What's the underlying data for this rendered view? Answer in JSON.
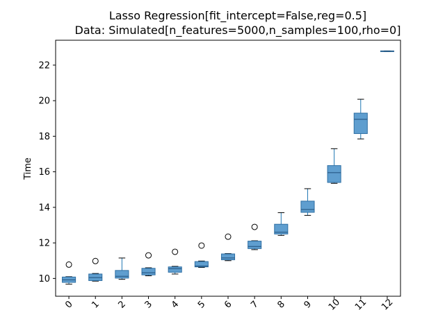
{
  "chart_data": {
    "type": "box",
    "title_line1": "Lasso Regression[fit_intercept=False,reg=0.5]",
    "title_line2": "Data: Simulated[n_features=5000,n_samples=100,rho=0]",
    "xlabel": "",
    "ylabel": "Time",
    "ylim": [
      9.0,
      23.4
    ],
    "yticks": [
      10,
      12,
      14,
      16,
      18,
      20,
      22
    ],
    "categories": [
      "0",
      "1",
      "2",
      "3",
      "4",
      "5",
      "6",
      "7",
      "8",
      "9",
      "10",
      "11",
      "12"
    ],
    "boxes": [
      {
        "cat": "0",
        "whislo": 9.68,
        "q1": 9.78,
        "med": 9.92,
        "q3": 10.08,
        "whishi": 10.1,
        "fliers": [
          10.78
        ]
      },
      {
        "cat": "1",
        "whislo": 9.85,
        "q1": 9.88,
        "med": 10.05,
        "q3": 10.25,
        "whishi": 10.28,
        "fliers": [
          10.98
        ]
      },
      {
        "cat": "2",
        "whislo": 9.95,
        "q1": 10.02,
        "med": 10.12,
        "q3": 10.45,
        "whishi": 11.15,
        "fliers": []
      },
      {
        "cat": "3",
        "whislo": 10.15,
        "q1": 10.2,
        "med": 10.32,
        "q3": 10.57,
        "whishi": 10.6,
        "fliers": [
          11.3
        ]
      },
      {
        "cat": "4",
        "whislo": 10.25,
        "q1": 10.35,
        "med": 10.55,
        "q3": 10.65,
        "whishi": 10.68,
        "fliers": [
          11.5
        ]
      },
      {
        "cat": "5",
        "whislo": 10.62,
        "q1": 10.65,
        "med": 10.7,
        "q3": 10.95,
        "whishi": 10.98,
        "fliers": [
          11.85
        ]
      },
      {
        "cat": "6",
        "whislo": 11.0,
        "q1": 11.05,
        "med": 11.15,
        "q3": 11.38,
        "whishi": 11.4,
        "fliers": [
          12.35
        ]
      },
      {
        "cat": "7",
        "whislo": 11.62,
        "q1": 11.68,
        "med": 11.8,
        "q3": 12.1,
        "whishi": 12.12,
        "fliers": [
          12.9
        ]
      },
      {
        "cat": "8",
        "whislo": 12.42,
        "q1": 12.5,
        "med": 12.6,
        "q3": 13.05,
        "whishi": 13.7,
        "fliers": []
      },
      {
        "cat": "9",
        "whislo": 13.55,
        "q1": 13.72,
        "med": 13.88,
        "q3": 14.35,
        "whishi": 15.05,
        "fliers": []
      },
      {
        "cat": "10",
        "whislo": 15.35,
        "q1": 15.4,
        "med": 15.95,
        "q3": 16.35,
        "whishi": 17.3,
        "fliers": []
      },
      {
        "cat": "11",
        "whislo": 17.85,
        "q1": 18.15,
        "med": 18.95,
        "q3": 19.3,
        "whishi": 20.08,
        "fliers": []
      },
      {
        "cat": "12",
        "whislo": 22.76,
        "q1": 22.76,
        "med": 22.78,
        "q3": 22.8,
        "whishi": 22.8,
        "fliers": []
      }
    ],
    "grid": false,
    "legend": "none",
    "box_fill": "#5f9ecf",
    "box_edge": "#2f6fa3",
    "median_color": "#1f4f7a",
    "whisker_color": "#1f77b4",
    "cap_color": "#000000",
    "flier_edge": "#000000"
  }
}
